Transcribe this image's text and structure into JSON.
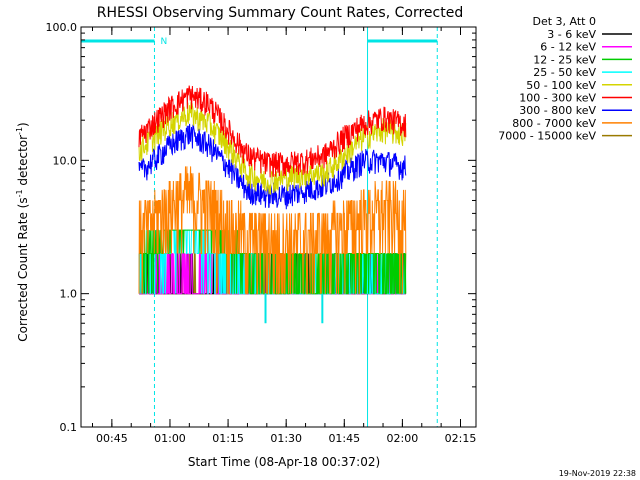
{
  "chart_data": {
    "type": "line",
    "title": "RHESSI Observing Summary Count Rates, Corrected",
    "xlabel": "Start Time (08-Apr-18 00:37:02)",
    "ylabel_main": "Corrected Count Rate (s",
    "ylabel_sup": "-1",
    "ylabel_tail": " detector",
    "ylabel_end": ")",
    "y_scale": "log",
    "ylim": [
      0.1,
      100.0
    ],
    "xlim": [
      "00:37:02",
      "02:19:00"
    ],
    "x_ticks": [
      "00:45",
      "01:00",
      "01:15",
      "01:30",
      "01:45",
      "02:00",
      "02:15"
    ],
    "y_ticks": [
      "0.1",
      "1.0",
      "10.0",
      "100.0"
    ],
    "legend_title": "Det 3, Att 0",
    "legend_position": "top-right",
    "timestamp": "19-Nov-2019 22:38",
    "night_marker": "N",
    "night_intervals": [
      [
        "00:37:02",
        "00:56:00"
      ],
      [
        "01:51:00",
        "02:09:00"
      ]
    ],
    "data_span": [
      "00:52:00",
      "02:01:00"
    ],
    "grid": false,
    "series": [
      {
        "name": "3 - 6 keV",
        "color": "#000000",
        "times": [
          "00:52",
          "01:00",
          "01:10",
          "01:20",
          "01:30",
          "01:40",
          "01:50",
          "02:00"
        ],
        "values": [
          1.0,
          1.0,
          1.0,
          1.0,
          1.0,
          1.0,
          1.0,
          1.0
        ]
      },
      {
        "name": "6 - 12 keV",
        "color": "#ff00ff",
        "times": [
          "00:52",
          "01:00",
          "01:10",
          "01:20",
          "01:30",
          "01:40",
          "01:50",
          "02:00"
        ],
        "values": [
          1.0,
          1.2,
          1.3,
          1.0,
          1.0,
          1.0,
          1.0,
          1.0
        ]
      },
      {
        "name": "12 - 25 keV",
        "color": "#00cc00",
        "times": [
          "00:52",
          "01:00",
          "01:05",
          "01:10",
          "01:20",
          "01:30",
          "01:40",
          "01:50",
          "02:00"
        ],
        "values": [
          1.6,
          3.0,
          4.0,
          3.0,
          1.5,
          1.2,
          1.3,
          1.6,
          1.5
        ]
      },
      {
        "name": "25 - 50 keV",
        "color": "#00ffff",
        "times": [
          "00:52",
          "01:00",
          "01:05",
          "01:10",
          "01:20",
          "01:30",
          "01:40",
          "01:50",
          "02:00"
        ],
        "values": [
          1.5,
          2.2,
          2.6,
          2.0,
          1.3,
          1.1,
          1.1,
          1.3,
          1.3
        ]
      },
      {
        "name": "50 - 100 keV",
        "color": "#d4d400",
        "times": [
          "00:52",
          "01:00",
          "01:05",
          "01:10",
          "01:15",
          "01:20",
          "01:25",
          "01:30",
          "01:35",
          "01:40",
          "01:45",
          "01:50",
          "01:55",
          "02:00"
        ],
        "values": [
          12,
          19,
          23,
          19,
          13,
          8,
          7,
          7.5,
          8,
          8,
          11,
          15,
          17,
          16
        ]
      },
      {
        "name": "100 - 300 keV",
        "color": "#ff0000",
        "times": [
          "00:52",
          "01:00",
          "01:05",
          "01:10",
          "01:15",
          "01:20",
          "01:25",
          "01:30",
          "01:35",
          "01:40",
          "01:45",
          "01:50",
          "01:55",
          "02:00"
        ],
        "values": [
          15,
          25,
          31,
          27,
          17,
          11,
          9.5,
          9.5,
          10,
          11,
          15,
          19,
          21,
          19
        ]
      },
      {
        "name": "300 - 800 keV",
        "color": "#0000ff",
        "times": [
          "00:52",
          "01:00",
          "01:05",
          "01:10",
          "01:15",
          "01:20",
          "01:25",
          "01:30",
          "01:35",
          "01:40",
          "01:45",
          "01:50",
          "01:55",
          "02:00"
        ],
        "values": [
          8,
          13,
          16,
          13,
          9,
          6,
          5.5,
          5.5,
          6,
          6.5,
          8,
          10,
          10,
          9
        ]
      },
      {
        "name": "800 - 7000 keV",
        "color": "#ff8000",
        "times": [
          "00:52",
          "01:00",
          "01:05",
          "01:10",
          "01:15",
          "01:20",
          "01:25",
          "01:30",
          "01:35",
          "01:40",
          "01:45",
          "01:50",
          "01:55",
          "02:00"
        ],
        "values": [
          3.5,
          5.5,
          6.5,
          5.5,
          4,
          3.2,
          3,
          3,
          3,
          3.2,
          3.8,
          4.5,
          5,
          4.5
        ]
      },
      {
        "name": "7000 - 15000 keV",
        "color": "#9a7a00",
        "times": [
          "00:52",
          "01:10",
          "01:30",
          "01:50",
          "02:00"
        ],
        "values": [
          1.0,
          1.0,
          1.0,
          1.0,
          1.0
        ]
      }
    ]
  }
}
